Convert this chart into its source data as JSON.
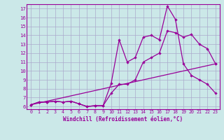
{
  "xlabel": "Windchill (Refroidissement éolien,°C)",
  "bg_color": "#cbe8e8",
  "grid_color": "#aaaacc",
  "line_color": "#990099",
  "xlim": [
    -0.5,
    23.5
  ],
  "ylim": [
    5.7,
    17.5
  ],
  "xticks": [
    0,
    1,
    2,
    3,
    4,
    5,
    6,
    7,
    8,
    9,
    10,
    11,
    12,
    13,
    14,
    15,
    16,
    17,
    18,
    19,
    20,
    21,
    22,
    23
  ],
  "yticks": [
    6,
    7,
    8,
    9,
    10,
    11,
    12,
    13,
    14,
    15,
    16,
    17
  ],
  "line1_x": [
    0,
    1,
    2,
    3,
    4,
    5,
    6,
    7,
    8,
    9,
    10,
    11,
    12,
    13,
    14,
    15,
    16,
    17,
    18,
    19,
    20,
    21,
    22,
    23
  ],
  "line1_y": [
    6.2,
    6.5,
    6.5,
    6.6,
    6.5,
    6.6,
    6.3,
    6.0,
    6.1,
    6.1,
    7.5,
    8.5,
    8.5,
    9.0,
    11.0,
    11.5,
    12.0,
    14.5,
    14.3,
    13.8,
    14.1,
    13.0,
    12.5,
    10.8
  ],
  "line2_x": [
    0,
    1,
    2,
    3,
    4,
    5,
    6,
    7,
    8,
    9,
    10,
    11,
    12,
    13,
    14,
    15,
    16,
    17,
    18,
    19,
    20,
    21,
    22,
    23
  ],
  "line2_y": [
    6.2,
    6.5,
    6.5,
    6.6,
    6.5,
    6.6,
    6.3,
    6.0,
    6.1,
    6.1,
    8.6,
    13.5,
    11.0,
    11.5,
    13.8,
    14.0,
    13.5,
    17.3,
    15.8,
    10.8,
    9.5,
    9.0,
    8.5,
    7.5
  ],
  "line3_x": [
    0,
    23
  ],
  "line3_y": [
    6.2,
    10.8
  ]
}
